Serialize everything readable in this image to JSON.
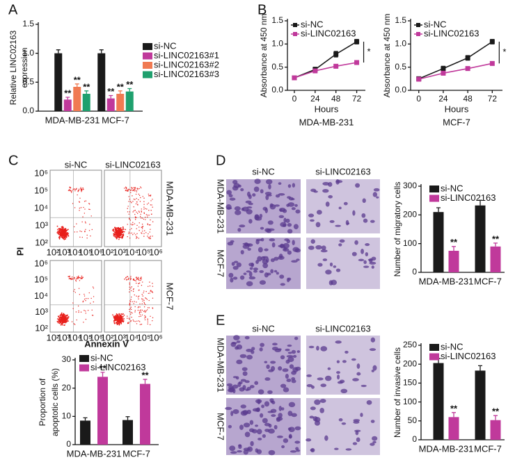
{
  "chart_data": [
    {
      "type": "bar",
      "panel": "A",
      "ylabel": [
        "Relative LINC02163",
        "expression"
      ],
      "categories": [
        "MDA-MB-231",
        "MCF-7"
      ],
      "ylim": [
        0,
        1.5
      ],
      "yticks": [
        {
          "value": 0,
          "label": "0.0"
        },
        {
          "value": 0.5,
          "label": "0.5"
        },
        {
          "value": 1,
          "label": "1.0"
        },
        {
          "value": 1.5,
          "label": "1.5"
        }
      ],
      "series": [
        {
          "name": "si-NC",
          "color": "#1a1a1a",
          "values": [
            1.0,
            1.0
          ],
          "errors": [
            0.06,
            0.06
          ]
        },
        {
          "name": "si-LINC02163#1",
          "color": "#c0399b",
          "values": [
            0.2,
            0.22
          ],
          "errors": [
            0.04,
            0.05
          ],
          "significance": [
            "**",
            "**"
          ]
        },
        {
          "name": "si-LINC02163#2",
          "color": "#f07a52",
          "values": [
            0.42,
            0.3
          ],
          "errors": [
            0.05,
            0.05
          ],
          "significance": [
            "**",
            "**"
          ]
        },
        {
          "name": "si-LINC02163#3",
          "color": "#1fa06e",
          "values": [
            0.3,
            0.34
          ],
          "errors": [
            0.05,
            0.05
          ],
          "significance": [
            "**",
            "**"
          ]
        }
      ]
    },
    {
      "type": "line",
      "panel": "B",
      "ylabel": [
        "Absorbance at 450 nm"
      ],
      "xlabel": "Hours",
      "subtitle": "MDA-MB-231",
      "x": [
        0,
        24,
        48,
        72
      ],
      "xlim": [
        -8,
        82
      ],
      "xticks": [
        0,
        24,
        48,
        72
      ],
      "ylim": [
        0,
        1.5
      ],
      "yticks": [
        {
          "value": 0,
          "label": "0.0"
        },
        {
          "value": 0.5,
          "label": "0.5"
        },
        {
          "value": 1,
          "label": "1.0"
        },
        {
          "value": 1.5,
          "label": "1.5"
        }
      ],
      "annotation": "*",
      "series": [
        {
          "name": "si-NC",
          "color": "#1a1a1a",
          "values": [
            0.27,
            0.45,
            0.78,
            1.05
          ],
          "errors": [
            0.04,
            0.05,
            0.06,
            0.05
          ]
        },
        {
          "name": "si-LINC02163",
          "color": "#c0399b",
          "values": [
            0.27,
            0.42,
            0.52,
            0.6
          ],
          "errors": [
            0.04,
            0.04,
            0.04,
            0.04
          ]
        }
      ]
    },
    {
      "type": "line",
      "ylabel": [
        "Absorbance at 450 nm"
      ],
      "xlabel": "Hours",
      "subtitle": "MCF-7",
      "x": [
        0,
        24,
        48,
        72
      ],
      "xlim": [
        -8,
        82
      ],
      "xticks": [
        0,
        24,
        48,
        72
      ],
      "ylim": [
        0,
        1.5
      ],
      "yticks": [
        {
          "value": 0,
          "label": "0.0"
        },
        {
          "value": 0.5,
          "label": "0.5"
        },
        {
          "value": 1,
          "label": "1.0"
        },
        {
          "value": 1.5,
          "label": "1.5"
        }
      ],
      "annotation": "*",
      "series": [
        {
          "name": "si-NC",
          "color": "#1a1a1a",
          "values": [
            0.25,
            0.47,
            0.7,
            1.05
          ],
          "errors": [
            0.04,
            0.05,
            0.05,
            0.05
          ]
        },
        {
          "name": "si-LINC02163",
          "color": "#c0399b",
          "values": [
            0.24,
            0.37,
            0.47,
            0.58
          ],
          "errors": [
            0.04,
            0.04,
            0.04,
            0.04
          ]
        }
      ]
    },
    {
      "type": "bar",
      "panel": "C",
      "ylabel": [
        "Proportion of",
        "apoptotic cells (%)"
      ],
      "categories": [
        "MDA-MB-231",
        "MCF-7"
      ],
      "ylim": [
        0,
        30
      ],
      "yticks": [
        0,
        10,
        20,
        30
      ],
      "series": [
        {
          "name": "si-NC",
          "color": "#1a1a1a",
          "values": [
            8.5,
            8.7
          ],
          "errors": [
            1.0,
            1.2
          ]
        },
        {
          "name": "si-LINC02163",
          "color": "#c0399b",
          "values": [
            24,
            21.5
          ],
          "errors": [
            1.6,
            1.6
          ],
          "significance": [
            "**",
            "**"
          ]
        }
      ]
    },
    {
      "type": "bar",
      "panel": "D",
      "ylabel": [
        "Number of migratory cells"
      ],
      "categories": [
        "MDA-MB-231",
        "MCF-7"
      ],
      "ylim": [
        0,
        300
      ],
      "yticks": [
        0,
        100,
        200,
        300
      ],
      "series": [
        {
          "name": "si-NC",
          "color": "#1a1a1a",
          "values": [
            210,
            233
          ],
          "errors": [
            15,
            18
          ]
        },
        {
          "name": "si-LINC02163",
          "color": "#c0399b",
          "values": [
            75,
            90
          ],
          "errors": [
            15,
            12
          ],
          "significance": [
            "**",
            "**"
          ]
        }
      ]
    },
    {
      "type": "bar",
      "panel": "E",
      "ylabel": [
        "Number of invasive cells"
      ],
      "categories": [
        "MDA-MB-231",
        "MCF-7"
      ],
      "ylim": [
        0,
        250
      ],
      "yticks": [
        0,
        50,
        100,
        150,
        200,
        250
      ],
      "series": [
        {
          "name": "si-NC",
          "color": "#1a1a1a",
          "values": [
            203,
            183
          ],
          "errors": [
            12,
            13
          ]
        },
        {
          "name": "si-LINC02163",
          "color": "#c0399b",
          "values": [
            60,
            52
          ],
          "errors": [
            12,
            12
          ],
          "significance": [
            "**",
            "**"
          ]
        }
      ]
    }
  ],
  "flow_cytometry": {
    "columns": [
      "si-NC",
      "si-LINC02163"
    ],
    "rows": [
      "MDA-MB-231",
      "MCF-7"
    ],
    "ylabel": "PI",
    "xlabel": "Annexin V",
    "ticks": [
      "10²",
      "10³",
      "10⁴",
      "10⁵",
      "10⁶"
    ]
  },
  "micrographs": [
    {
      "columns": [
        "si-NC",
        "si-LINC02163"
      ],
      "rows": [
        "MDA-MB-231",
        "MCF-7"
      ]
    },
    {
      "columns": [
        "si-NC",
        "si-LINC02163"
      ],
      "rows": [
        "MDA-MB-231",
        "MCF-7"
      ]
    }
  ]
}
